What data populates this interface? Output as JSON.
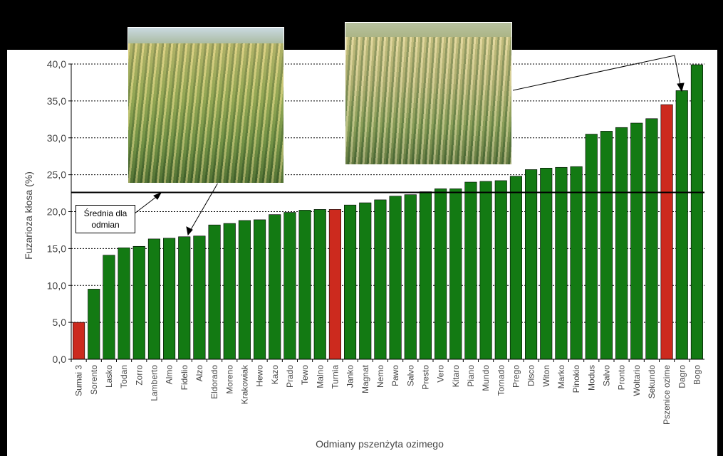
{
  "chart_data": {
    "type": "bar",
    "title": "",
    "xlabel": "Odmiany pszenżyta ozimego",
    "ylabel": "Fuzarioza kłosa (%)",
    "ylim": [
      0,
      40
    ],
    "yticks": [
      "0,0",
      "5,0",
      "10,0",
      "15,0",
      "20,0",
      "25,0",
      "30,0",
      "35,0",
      "40,0"
    ],
    "grid": "horizontal dashed",
    "categories": [
      "Sumai 3",
      "Sorento",
      "Lasko",
      "Todan",
      "Zorro",
      "Lamberto",
      "Almo",
      "Fidelio",
      "Alzo",
      "Eldorado",
      "Moreno",
      "Krakowiak",
      "Hewo",
      "Kazo",
      "Prado",
      "Tewo",
      "Malno",
      "Turnia",
      "Janko",
      "Magnat",
      "Nemo",
      "Pawo",
      "Salvo",
      "Presto",
      "Vero",
      "Kitaro",
      "Piano",
      "Mundo",
      "Tornado",
      "Prego",
      "Disco",
      "Witon",
      "Marko",
      "Pinokio",
      "Modus",
      "Salvo",
      "Pronto",
      "Woltario",
      "Sekundo",
      "Pszenice ozime",
      "Dagro",
      "Bogo"
    ],
    "values": [
      5.0,
      9.5,
      14.1,
      15.1,
      15.3,
      16.3,
      16.4,
      16.6,
      16.7,
      18.2,
      18.4,
      18.8,
      18.9,
      19.6,
      19.9,
      20.2,
      20.3,
      20.3,
      20.9,
      21.2,
      21.6,
      22.1,
      22.3,
      22.7,
      23.1,
      23.1,
      24.0,
      24.1,
      24.2,
      24.8,
      25.7,
      25.9,
      26.0,
      26.1,
      30.5,
      30.9,
      31.4,
      32.0,
      32.6,
      34.5,
      36.4,
      39.9
    ],
    "bar_colors": [
      "#cc2a1e",
      "#137a13",
      "#137a13",
      "#137a13",
      "#137a13",
      "#137a13",
      "#137a13",
      "#137a13",
      "#137a13",
      "#137a13",
      "#137a13",
      "#137a13",
      "#137a13",
      "#137a13",
      "#137a13",
      "#137a13",
      "#137a13",
      "#cc2a1e",
      "#137a13",
      "#137a13",
      "#137a13",
      "#137a13",
      "#137a13",
      "#137a13",
      "#137a13",
      "#137a13",
      "#137a13",
      "#137a13",
      "#137a13",
      "#137a13",
      "#137a13",
      "#137a13",
      "#137a13",
      "#137a13",
      "#137a13",
      "#137a13",
      "#137a13",
      "#137a13",
      "#137a13",
      "#cc2a1e",
      "#137a13",
      "#137a13"
    ],
    "mean": 22.6,
    "annotations": {
      "mean_label": "Średnia dla odmian"
    }
  }
}
